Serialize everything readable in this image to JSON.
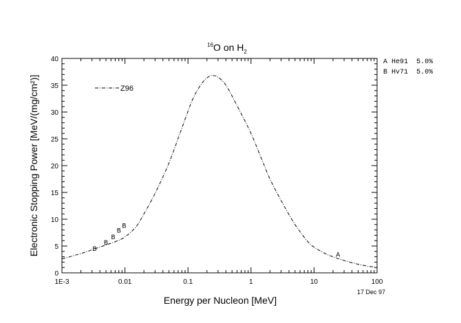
{
  "chart_data": {
    "type": "line",
    "title": {
      "superscript": "16",
      "main": "O on H",
      "subscript": "2"
    },
    "xlabel": "Energy per Nucleon [MeV]",
    "ylabel": "Electronic Stopping Power [MeV/(mg/cm²)]",
    "x_scale": "log",
    "xlim": [
      0.001,
      100
    ],
    "ylim": [
      0,
      40
    ],
    "x_ticks": [
      {
        "value": 0.001,
        "label": "1E-3"
      },
      {
        "value": 0.01,
        "label": "0.01"
      },
      {
        "value": 0.1,
        "label": "0.1"
      },
      {
        "value": 1,
        "label": "1"
      },
      {
        "value": 10,
        "label": "10"
      },
      {
        "value": 100,
        "label": "100"
      }
    ],
    "y_ticks": [
      0,
      5,
      10,
      15,
      20,
      25,
      30,
      35,
      40
    ],
    "date_label": "17 Dec 97",
    "curve_legend": {
      "label": "Z96",
      "placement": "top-left"
    },
    "series": [
      {
        "name": "Z96",
        "style": "dash-dot",
        "points": [
          [
            0.001,
            2.6
          ],
          [
            0.002,
            3.6
          ],
          [
            0.003,
            4.3
          ],
          [
            0.005,
            5.2
          ],
          [
            0.007,
            5.8
          ],
          [
            0.01,
            6.7
          ],
          [
            0.015,
            8.6
          ],
          [
            0.02,
            11.0
          ],
          [
            0.03,
            14.8
          ],
          [
            0.05,
            20.5
          ],
          [
            0.08,
            27.0
          ],
          [
            0.12,
            32.5
          ],
          [
            0.17,
            35.5
          ],
          [
            0.22,
            36.7
          ],
          [
            0.25,
            36.8
          ],
          [
            0.3,
            36.5
          ],
          [
            0.4,
            35.0
          ],
          [
            0.6,
            31.2
          ],
          [
            1,
            26.0
          ],
          [
            1.5,
            21.0
          ],
          [
            2,
            17.5
          ],
          [
            3,
            13.5
          ],
          [
            5,
            9.0
          ],
          [
            8,
            5.8
          ],
          [
            10,
            4.8
          ],
          [
            15,
            3.6
          ],
          [
            20,
            3.0
          ],
          [
            30,
            2.3
          ],
          [
            50,
            1.6
          ],
          [
            80,
            1.15
          ],
          [
            100,
            1.0
          ]
        ]
      }
    ],
    "measurements": [
      {
        "marker": "A",
        "points": [
          [
            24,
            3.5
          ]
        ]
      },
      {
        "marker": "B",
        "points": [
          [
            0.0033,
            4.6
          ],
          [
            0.005,
            5.8
          ],
          [
            0.0065,
            6.8
          ],
          [
            0.008,
            8.0
          ],
          [
            0.0097,
            8.9
          ]
        ]
      }
    ],
    "data_sources": [
      {
        "marker": "A",
        "ref": "He91",
        "error": "5.0%"
      },
      {
        "marker": "B",
        "ref": "Hv71",
        "error": "5.0%"
      }
    ]
  }
}
